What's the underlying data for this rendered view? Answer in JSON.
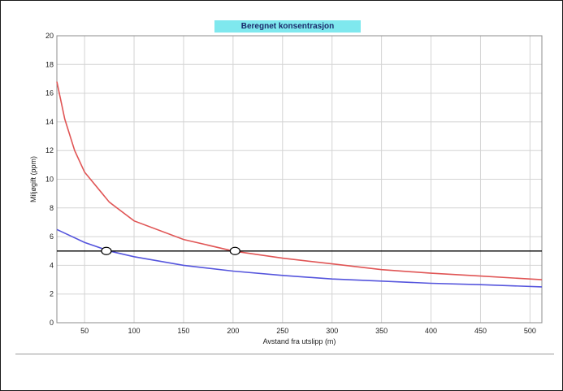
{
  "chart_data": {
    "type": "line",
    "title": "Beregnet konsentrasjon",
    "xlabel": "Avstand fra utslipp (m)",
    "ylabel": "Miljøgift (ppm)",
    "xlim": [
      22,
      512
    ],
    "ylim": [
      0,
      20
    ],
    "x_ticks": [
      50,
      100,
      150,
      200,
      250,
      300,
      350,
      400,
      450,
      500
    ],
    "y_ticks": [
      0,
      2,
      4,
      6,
      8,
      10,
      12,
      14,
      16,
      18,
      20
    ],
    "grid": true,
    "colors": {
      "upper": "#e05555",
      "lower": "#5555dd",
      "threshold": "#000000",
      "title_bg": "#7fe8ee"
    },
    "series": [
      {
        "x": [
          22,
          30,
          40,
          50,
          75,
          100,
          150,
          200,
          250,
          300,
          350,
          400,
          450,
          512
        ],
        "y": [
          16.8,
          14.2,
          12.0,
          10.5,
          8.4,
          7.1,
          5.8,
          5.0,
          4.5,
          4.1,
          3.7,
          3.45,
          3.25,
          3.0
        ]
      },
      {
        "x": [
          22,
          50,
          75,
          100,
          150,
          200,
          250,
          300,
          350,
          400,
          450,
          512
        ],
        "y": [
          6.5,
          5.6,
          5.0,
          4.6,
          4.0,
          3.6,
          3.3,
          3.05,
          2.9,
          2.75,
          2.65,
          2.5
        ]
      },
      {
        "x": [
          22,
          512
        ],
        "y": [
          5,
          5
        ]
      }
    ],
    "markers": [
      {
        "x": 72,
        "y": 5
      },
      {
        "x": 202,
        "y": 5
      }
    ]
  }
}
